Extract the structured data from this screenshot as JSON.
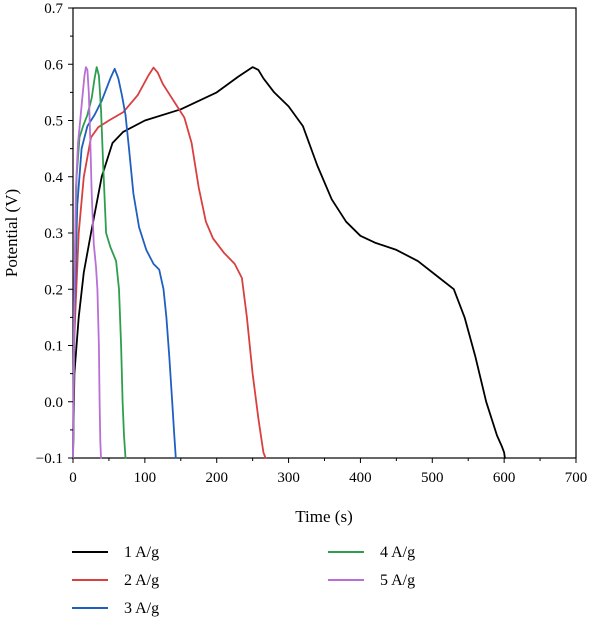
{
  "chart_data": {
    "type": "line",
    "title": "",
    "xlabel": "Time (s)",
    "ylabel": "Potential (V)",
    "xlim": [
      0,
      700
    ],
    "ylim": [
      -0.1,
      0.7
    ],
    "xticks": [
      0,
      100,
      200,
      300,
      400,
      500,
      600,
      700
    ],
    "xtick_labels": [
      "0",
      "100",
      "200",
      "300",
      "400",
      "500",
      "600",
      "700"
    ],
    "yticks": [
      -0.1,
      0.0,
      0.1,
      0.2,
      0.3,
      0.4,
      0.5,
      0.6,
      0.7
    ],
    "ytick_labels": [
      "−0.1",
      "0.0",
      "0.1",
      "0.2",
      "0.3",
      "0.4",
      "0.5",
      "0.6",
      "0.7"
    ],
    "grid": false,
    "legend_position": "below",
    "series": [
      {
        "name": "1 A/g",
        "color": "#000000",
        "x": [
          0,
          2,
          8,
          15,
          25,
          40,
          55,
          70,
          100,
          150,
          200,
          230,
          250,
          258,
          265,
          280,
          300,
          320,
          340,
          360,
          380,
          400,
          420,
          450,
          480,
          510,
          530,
          545,
          560,
          575,
          590,
          597,
          600,
          601
        ],
        "y": [
          -0.1,
          0.05,
          0.15,
          0.23,
          0.3,
          0.4,
          0.46,
          0.48,
          0.5,
          0.52,
          0.55,
          0.578,
          0.595,
          0.59,
          0.575,
          0.55,
          0.525,
          0.49,
          0.42,
          0.36,
          0.32,
          0.295,
          0.283,
          0.27,
          0.25,
          0.22,
          0.2,
          0.15,
          0.08,
          0.0,
          -0.06,
          -0.08,
          -0.09,
          -0.1
        ]
      },
      {
        "name": "2 A/g",
        "color": "#d93f3f",
        "x": [
          0,
          2,
          8,
          15,
          25,
          35,
          50,
          70,
          90,
          105,
          112,
          118,
          125,
          135,
          145,
          155,
          165,
          175,
          185,
          195,
          210,
          225,
          235,
          242,
          250,
          258,
          265,
          268
        ],
        "y": [
          -0.1,
          0.12,
          0.3,
          0.4,
          0.47,
          0.488,
          0.5,
          0.515,
          0.545,
          0.58,
          0.594,
          0.585,
          0.565,
          0.545,
          0.525,
          0.505,
          0.46,
          0.38,
          0.32,
          0.29,
          0.265,
          0.245,
          0.22,
          0.15,
          0.05,
          -0.03,
          -0.09,
          -0.1
        ]
      },
      {
        "name": "3 A/g",
        "color": "#1f5fbf",
        "x": [
          0,
          2,
          6,
          12,
          20,
          30,
          40,
          52,
          58,
          63,
          68,
          73,
          78,
          84,
          92,
          102,
          112,
          120,
          126,
          130,
          134,
          138,
          141,
          143
        ],
        "y": [
          -0.1,
          0.15,
          0.35,
          0.45,
          0.49,
          0.51,
          0.535,
          0.575,
          0.592,
          0.575,
          0.545,
          0.51,
          0.45,
          0.37,
          0.31,
          0.27,
          0.245,
          0.235,
          0.2,
          0.15,
          0.08,
          0.0,
          -0.06,
          -0.1
        ]
      },
      {
        "name": "4 A/g",
        "color": "#2e9e4e",
        "x": [
          0,
          2,
          5,
          9,
          14,
          20,
          26,
          30,
          33,
          36,
          39,
          42,
          46,
          52,
          60,
          64,
          67,
          69,
          71,
          73
        ],
        "y": [
          -0.1,
          0.2,
          0.4,
          0.47,
          0.49,
          0.51,
          0.54,
          0.575,
          0.595,
          0.58,
          0.52,
          0.42,
          0.3,
          0.275,
          0.25,
          0.2,
          0.1,
          0.0,
          -0.06,
          -0.1
        ]
      },
      {
        "name": "5 A/g",
        "color": "#b86fd6",
        "x": [
          0,
          2,
          4,
          7,
          10,
          13,
          16,
          18,
          20,
          22,
          24,
          26,
          29,
          32,
          34,
          36,
          37,
          38,
          39
        ],
        "y": [
          -0.1,
          0.2,
          0.38,
          0.46,
          0.5,
          0.54,
          0.58,
          0.595,
          0.59,
          0.55,
          0.47,
          0.37,
          0.28,
          0.24,
          0.2,
          0.1,
          0.0,
          -0.07,
          -0.1
        ]
      }
    ]
  }
}
